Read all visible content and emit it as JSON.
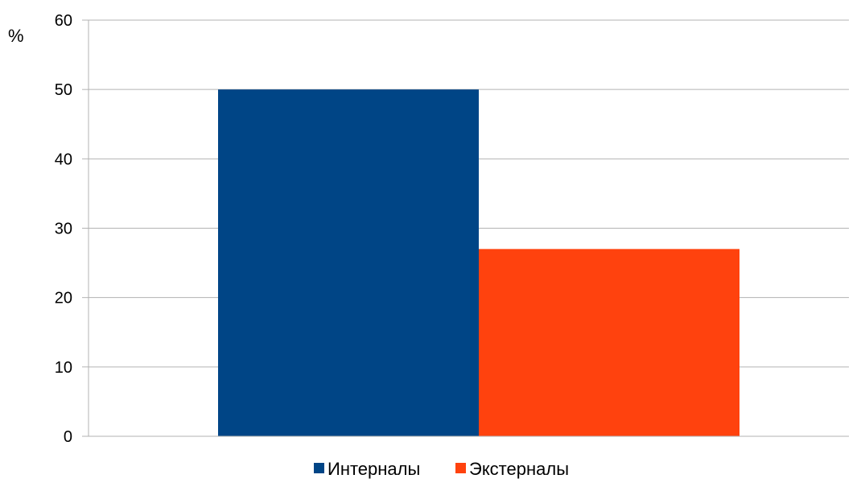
{
  "chart_data": {
    "type": "bar",
    "title": "",
    "xlabel": "",
    "ylabel": "%",
    "ylim": [
      0,
      60
    ],
    "yticks": [
      0,
      10,
      20,
      30,
      40,
      50,
      60
    ],
    "grid": true,
    "legend_position": "bottom",
    "series": [
      {
        "name": "Интерналы",
        "value": 50,
        "color": "#004586"
      },
      {
        "name": "Экстерналы",
        "value": 27,
        "color": "#ff420e"
      }
    ]
  }
}
